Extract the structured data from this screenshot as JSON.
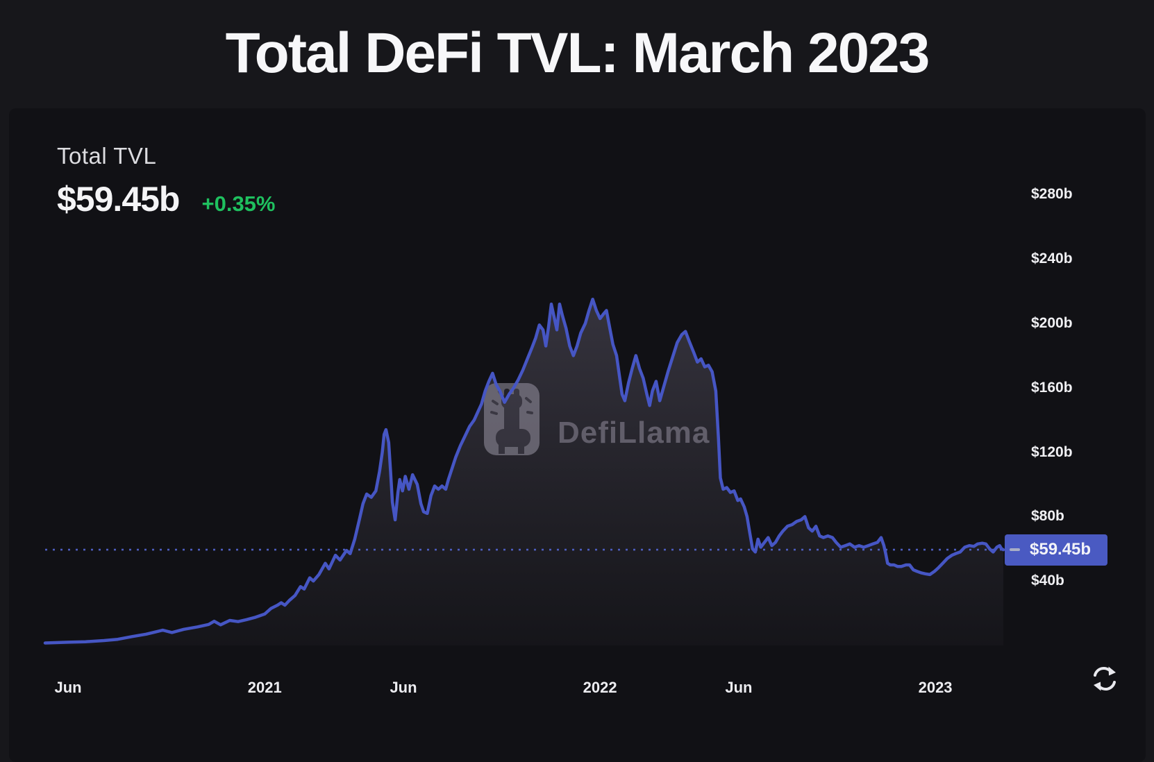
{
  "page": {
    "title": "Total DeFi TVL: March 2023"
  },
  "stats": {
    "label": "Total TVL",
    "value": "$59.45b",
    "change": "+0.35%"
  },
  "watermark": {
    "text": "DefiLlama",
    "icon": "defillama-llama-logo"
  },
  "toolbar": {
    "refresh_icon": "refresh-circular-arrows"
  },
  "colors": {
    "page_bg": "#17171b",
    "panel_bg": "#111115",
    "line": "#4656c4",
    "dotted_marker_line": "#4d5dc0",
    "marker_box": "#4a5ac2",
    "positive_change": "#1fc05f",
    "area_fill": "rgba(150,142,170,0.26)"
  },
  "chart_data": {
    "type": "area",
    "title": "Total DeFi TVL: March 2023",
    "subtitle": "Total TVL $59.45b (+0.35%)",
    "legend_position": "none",
    "grid": false,
    "ylim": [
      0,
      300
    ],
    "y_axis": {
      "unit": "$ billions",
      "ticks": [
        {
          "label": "$280b",
          "value": 280
        },
        {
          "label": "$240b",
          "value": 240
        },
        {
          "label": "$200b",
          "value": 200
        },
        {
          "label": "$160b",
          "value": 160
        },
        {
          "label": "$120b",
          "value": 120
        },
        {
          "label": "$80b",
          "value": 80
        },
        {
          "label": "$40b",
          "value": 40
        }
      ]
    },
    "x_axis": {
      "ticks": [
        {
          "label": "Jun",
          "date": "2020-06-01"
        },
        {
          "label": "2021",
          "date": "2021-01-01"
        },
        {
          "label": "Jun",
          "date": "2021-06-01"
        },
        {
          "label": "2022",
          "date": "2022-01-01"
        },
        {
          "label": "Jun",
          "date": "2022-06-01"
        },
        {
          "label": "2023",
          "date": "2023-01-01"
        }
      ]
    },
    "marker": {
      "label": "$59.45b",
      "value": 59.45
    },
    "series": [
      {
        "name": "Total TVL ($b)",
        "points": [
          [
            "2020-05-07",
            1.5
          ],
          [
            "2020-06-01",
            2
          ],
          [
            "2020-06-20",
            2.3
          ],
          [
            "2020-07-10",
            3
          ],
          [
            "2020-07-25",
            3.8
          ],
          [
            "2020-08-10",
            5.5
          ],
          [
            "2020-08-25",
            7
          ],
          [
            "2020-09-05",
            8.5
          ],
          [
            "2020-09-12",
            9.5
          ],
          [
            "2020-09-22",
            8
          ],
          [
            "2020-10-05",
            10
          ],
          [
            "2020-10-20",
            11.5
          ],
          [
            "2020-11-01",
            13
          ],
          [
            "2020-11-07",
            15
          ],
          [
            "2020-11-14",
            12.8
          ],
          [
            "2020-11-24",
            15.5
          ],
          [
            "2020-12-03",
            14.8
          ],
          [
            "2020-12-12",
            16
          ],
          [
            "2020-12-22",
            17.5
          ],
          [
            "2021-01-01",
            19.5
          ],
          [
            "2021-01-08",
            23
          ],
          [
            "2021-01-15",
            25
          ],
          [
            "2021-01-19",
            26.5
          ],
          [
            "2021-01-23",
            25
          ],
          [
            "2021-01-28",
            28
          ],
          [
            "2021-02-03",
            31
          ],
          [
            "2021-02-09",
            36.5
          ],
          [
            "2021-02-13",
            35
          ],
          [
            "2021-02-19",
            42
          ],
          [
            "2021-02-23",
            40
          ],
          [
            "2021-03-01",
            44
          ],
          [
            "2021-03-08",
            51
          ],
          [
            "2021-03-12",
            47.5
          ],
          [
            "2021-03-19",
            56
          ],
          [
            "2021-03-24",
            53
          ],
          [
            "2021-03-31",
            59
          ],
          [
            "2021-04-04",
            57
          ],
          [
            "2021-04-09",
            66
          ],
          [
            "2021-04-14",
            78
          ],
          [
            "2021-04-18",
            88
          ],
          [
            "2021-04-22",
            94
          ],
          [
            "2021-04-27",
            92
          ],
          [
            "2021-05-02",
            96
          ],
          [
            "2021-05-06",
            108
          ],
          [
            "2021-05-09",
            120
          ],
          [
            "2021-05-11",
            131
          ],
          [
            "2021-05-13",
            134
          ],
          [
            "2021-05-16",
            126
          ],
          [
            "2021-05-18",
            108
          ],
          [
            "2021-05-20",
            89
          ],
          [
            "2021-05-23",
            78
          ],
          [
            "2021-05-26",
            95
          ],
          [
            "2021-05-28",
            103
          ],
          [
            "2021-05-31",
            96
          ],
          [
            "2021-06-03",
            105
          ],
          [
            "2021-06-07",
            97
          ],
          [
            "2021-06-11",
            106
          ],
          [
            "2021-06-16",
            100
          ],
          [
            "2021-06-20",
            88
          ],
          [
            "2021-06-23",
            83
          ],
          [
            "2021-06-27",
            82
          ],
          [
            "2021-07-01",
            93
          ],
          [
            "2021-07-05",
            99
          ],
          [
            "2021-07-09",
            97
          ],
          [
            "2021-07-13",
            99
          ],
          [
            "2021-07-17",
            97
          ],
          [
            "2021-07-20",
            103
          ],
          [
            "2021-07-24",
            110
          ],
          [
            "2021-07-28",
            117
          ],
          [
            "2021-08-02",
            124
          ],
          [
            "2021-08-07",
            130
          ],
          [
            "2021-08-12",
            136
          ],
          [
            "2021-08-17",
            140
          ],
          [
            "2021-08-21",
            145
          ],
          [
            "2021-08-25",
            150
          ],
          [
            "2021-08-29",
            158
          ],
          [
            "2021-09-02",
            164
          ],
          [
            "2021-09-06",
            169
          ],
          [
            "2021-09-10",
            162
          ],
          [
            "2021-09-14",
            158
          ],
          [
            "2021-09-19",
            151
          ],
          [
            "2021-09-24",
            156
          ],
          [
            "2021-09-29",
            160
          ],
          [
            "2021-10-04",
            165
          ],
          [
            "2021-10-09",
            171
          ],
          [
            "2021-10-14",
            178
          ],
          [
            "2021-10-19",
            185
          ],
          [
            "2021-10-23",
            191
          ],
          [
            "2021-10-27",
            199
          ],
          [
            "2021-10-31",
            196
          ],
          [
            "2021-11-03",
            186
          ],
          [
            "2021-11-06",
            198
          ],
          [
            "2021-11-09",
            212
          ],
          [
            "2021-11-12",
            204
          ],
          [
            "2021-11-15",
            196
          ],
          [
            "2021-11-18",
            212
          ],
          [
            "2021-11-21",
            205
          ],
          [
            "2021-11-25",
            197
          ],
          [
            "2021-11-29",
            186
          ],
          [
            "2021-12-03",
            180
          ],
          [
            "2021-12-07",
            186
          ],
          [
            "2021-12-11",
            194
          ],
          [
            "2021-12-16",
            200
          ],
          [
            "2021-12-20",
            208
          ],
          [
            "2021-12-24",
            215
          ],
          [
            "2021-12-28",
            208
          ],
          [
            "2022-01-01",
            203
          ],
          [
            "2022-01-05",
            206
          ],
          [
            "2022-01-08",
            208
          ],
          [
            "2022-01-12",
            196
          ],
          [
            "2022-01-15",
            187
          ],
          [
            "2022-01-19",
            180
          ],
          [
            "2022-01-22",
            168
          ],
          [
            "2022-01-25",
            156
          ],
          [
            "2022-01-28",
            152
          ],
          [
            "2022-02-01",
            163
          ],
          [
            "2022-02-05",
            172
          ],
          [
            "2022-02-09",
            180
          ],
          [
            "2022-02-13",
            172
          ],
          [
            "2022-02-17",
            166
          ],
          [
            "2022-02-21",
            156
          ],
          [
            "2022-02-24",
            149
          ],
          [
            "2022-02-27",
            158
          ],
          [
            "2022-03-03",
            164
          ],
          [
            "2022-03-07",
            152
          ],
          [
            "2022-03-11",
            160
          ],
          [
            "2022-03-16",
            170
          ],
          [
            "2022-03-21",
            179
          ],
          [
            "2022-03-26",
            188
          ],
          [
            "2022-03-31",
            193
          ],
          [
            "2022-04-04",
            195
          ],
          [
            "2022-04-08",
            189
          ],
          [
            "2022-04-13",
            182
          ],
          [
            "2022-04-17",
            176
          ],
          [
            "2022-04-21",
            178
          ],
          [
            "2022-04-25",
            173
          ],
          [
            "2022-04-29",
            174
          ],
          [
            "2022-05-03",
            170
          ],
          [
            "2022-05-07",
            158
          ],
          [
            "2022-05-10",
            128
          ],
          [
            "2022-05-12",
            104
          ],
          [
            "2022-05-15",
            97
          ],
          [
            "2022-05-19",
            98
          ],
          [
            "2022-05-23",
            95
          ],
          [
            "2022-05-27",
            96
          ],
          [
            "2022-05-31",
            90
          ],
          [
            "2022-06-03",
            91
          ],
          [
            "2022-06-07",
            86
          ],
          [
            "2022-06-10",
            80
          ],
          [
            "2022-06-13",
            70
          ],
          [
            "2022-06-16",
            60
          ],
          [
            "2022-06-19",
            58
          ],
          [
            "2022-06-22",
            66
          ],
          [
            "2022-06-25",
            61
          ],
          [
            "2022-06-29",
            64
          ],
          [
            "2022-07-03",
            67
          ],
          [
            "2022-07-07",
            62
          ],
          [
            "2022-07-11",
            64
          ],
          [
            "2022-07-15",
            68
          ],
          [
            "2022-07-19",
            71
          ],
          [
            "2022-07-24",
            74
          ],
          [
            "2022-07-29",
            75
          ],
          [
            "2022-08-03",
            77
          ],
          [
            "2022-08-08",
            78
          ],
          [
            "2022-08-12",
            80
          ],
          [
            "2022-08-16",
            73
          ],
          [
            "2022-08-20",
            71
          ],
          [
            "2022-08-24",
            74
          ],
          [
            "2022-08-28",
            68
          ],
          [
            "2022-09-01",
            67
          ],
          [
            "2022-09-06",
            68
          ],
          [
            "2022-09-11",
            67
          ],
          [
            "2022-09-15",
            64
          ],
          [
            "2022-09-20",
            61
          ],
          [
            "2022-09-25",
            62
          ],
          [
            "2022-09-30",
            63
          ],
          [
            "2022-10-05",
            61
          ],
          [
            "2022-10-10",
            62
          ],
          [
            "2022-10-15",
            61
          ],
          [
            "2022-10-20",
            62
          ],
          [
            "2022-10-25",
            63
          ],
          [
            "2022-10-30",
            64
          ],
          [
            "2022-11-03",
            67
          ],
          [
            "2022-11-06",
            62
          ],
          [
            "2022-11-08",
            57
          ],
          [
            "2022-11-10",
            51
          ],
          [
            "2022-11-13",
            50
          ],
          [
            "2022-11-17",
            50
          ],
          [
            "2022-11-21",
            49
          ],
          [
            "2022-11-25",
            49
          ],
          [
            "2022-11-30",
            50
          ],
          [
            "2022-12-04",
            50
          ],
          [
            "2022-12-08",
            47
          ],
          [
            "2022-12-12",
            46
          ],
          [
            "2022-12-17",
            45
          ],
          [
            "2022-12-21",
            44.5
          ],
          [
            "2022-12-26",
            44
          ],
          [
            "2022-12-31",
            46
          ],
          [
            "2023-01-04",
            48
          ],
          [
            "2023-01-09",
            51
          ],
          [
            "2023-01-14",
            54
          ],
          [
            "2023-01-19",
            56
          ],
          [
            "2023-01-23",
            57
          ],
          [
            "2023-01-28",
            58
          ],
          [
            "2023-02-02",
            61
          ],
          [
            "2023-02-07",
            62
          ],
          [
            "2023-02-12",
            61.5
          ],
          [
            "2023-02-16",
            63
          ],
          [
            "2023-02-21",
            63.5
          ],
          [
            "2023-02-25",
            63
          ],
          [
            "2023-03-01",
            60
          ],
          [
            "2023-03-05",
            58
          ],
          [
            "2023-03-09",
            61
          ],
          [
            "2023-03-12",
            62
          ],
          [
            "2023-03-14",
            60
          ],
          [
            "2023-03-16",
            59.45
          ]
        ]
      }
    ]
  }
}
